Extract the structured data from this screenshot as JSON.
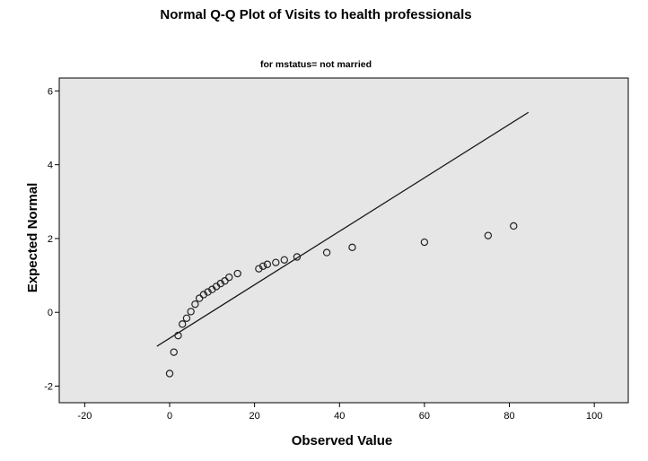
{
  "chart_data": {
    "type": "scatter",
    "title": "Normal Q-Q Plot of Visits to health professionals",
    "subtitle": "for mstatus= not married",
    "xlabel": "Observed Value",
    "ylabel": "Expected Normal",
    "xlim": [
      -26,
      108
    ],
    "ylim": [
      -2.45,
      6.35
    ],
    "x_ticks": [
      -20,
      0,
      20,
      40,
      60,
      80,
      100
    ],
    "y_ticks": [
      -2,
      0,
      2,
      4,
      6
    ],
    "grid": false,
    "background": "#e6e6e6",
    "marker": "open-circle",
    "reference_line": {
      "x": [
        -3,
        84.5
      ],
      "y": [
        -0.92,
        5.42
      ]
    },
    "points": [
      {
        "x": 0,
        "y": -1.66
      },
      {
        "x": 1,
        "y": -1.08
      },
      {
        "x": 2,
        "y": -0.63
      },
      {
        "x": 3,
        "y": -0.32
      },
      {
        "x": 4,
        "y": -0.16
      },
      {
        "x": 5,
        "y": 0.02
      },
      {
        "x": 6,
        "y": 0.22
      },
      {
        "x": 7,
        "y": 0.38
      },
      {
        "x": 8,
        "y": 0.48
      },
      {
        "x": 9,
        "y": 0.55
      },
      {
        "x": 10,
        "y": 0.62
      },
      {
        "x": 11,
        "y": 0.7
      },
      {
        "x": 12,
        "y": 0.78
      },
      {
        "x": 13,
        "y": 0.85
      },
      {
        "x": 14,
        "y": 0.95
      },
      {
        "x": 16,
        "y": 1.05
      },
      {
        "x": 21,
        "y": 1.18
      },
      {
        "x": 22,
        "y": 1.25
      },
      {
        "x": 23,
        "y": 1.3
      },
      {
        "x": 25,
        "y": 1.35
      },
      {
        "x": 27,
        "y": 1.42
      },
      {
        "x": 30,
        "y": 1.5
      },
      {
        "x": 37,
        "y": 1.62
      },
      {
        "x": 43,
        "y": 1.76
      },
      {
        "x": 60,
        "y": 1.9
      },
      {
        "x": 75,
        "y": 2.08
      },
      {
        "x": 81,
        "y": 2.34
      }
    ]
  }
}
